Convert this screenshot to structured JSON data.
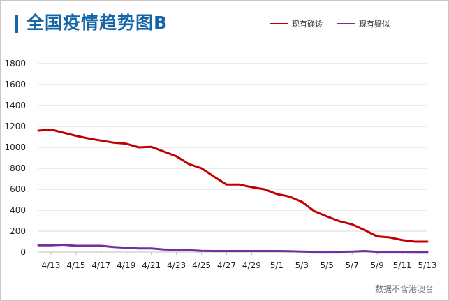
{
  "colors": {
    "title": "#1565a8",
    "accent_bar": "#1565a8",
    "grid": "#d9d9d9",
    "axis": "#bfbfbf"
  },
  "title": "全国疫情趋势图B",
  "source": "数据不含港澳台",
  "chart_data": {
    "type": "line",
    "title": "全国疫情趋势图B",
    "xlabel": "",
    "ylabel": "",
    "ylim": [
      0,
      1800
    ],
    "yticks": [
      "0",
      "200",
      "400",
      "600",
      "800",
      "1000",
      "1200",
      "1400",
      "1600",
      "1800"
    ],
    "grid": true,
    "legend_position": "top-right",
    "x": [
      "4/12",
      "4/13",
      "4/14",
      "4/15",
      "4/16",
      "4/17",
      "4/18",
      "4/19",
      "4/20",
      "4/21",
      "4/22",
      "4/23",
      "4/24",
      "4/25",
      "4/26",
      "4/27",
      "4/28",
      "4/29",
      "4/30",
      "5/1",
      "5/2",
      "5/3",
      "5/4",
      "5/5",
      "5/6",
      "5/7",
      "5/8",
      "5/9",
      "5/10",
      "5/11",
      "5/12",
      "5/13"
    ],
    "xticks": [
      "4/13",
      "4/15",
      "4/17",
      "4/19",
      "4/21",
      "4/23",
      "4/25",
      "4/27",
      "4/29",
      "5/1",
      "5/3",
      "5/5",
      "5/7",
      "5/9",
      "5/11",
      "5/13"
    ],
    "series": [
      {
        "name": "现有确诊",
        "color": "#c00000",
        "values": [
          1160,
          1170,
          1140,
          1110,
          1085,
          1065,
          1045,
          1035,
          1000,
          1005,
          960,
          915,
          840,
          800,
          720,
          645,
          645,
          620,
          600,
          555,
          530,
          480,
          390,
          340,
          295,
          265,
          210,
          150,
          140,
          115,
          100,
          100
        ]
      },
      {
        "name": "现有疑似",
        "color": "#7030a0",
        "values": [
          65,
          65,
          70,
          60,
          60,
          60,
          48,
          42,
          35,
          35,
          25,
          22,
          18,
          12,
          10,
          10,
          10,
          10,
          10,
          10,
          8,
          5,
          3,
          3,
          3,
          5,
          10,
          3,
          3,
          3,
          2,
          2
        ]
      }
    ]
  }
}
